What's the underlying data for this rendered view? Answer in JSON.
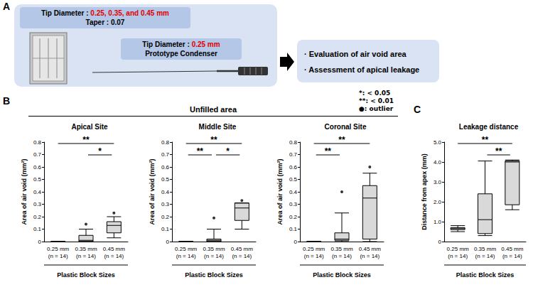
{
  "panel_a": {
    "letter": "A",
    "block": {
      "label": "Tip Diameter :",
      "value": "0.25, 0.35, and 0.45 mm",
      "taper": "Taper : 0.07"
    },
    "condenser": {
      "label": "Tip Diameter :",
      "value": "0.25 mm",
      "name": "Prototype Condenser"
    },
    "outcomes": [
      "· Evaluation of air void area",
      "· Assessment of apical leakage"
    ]
  },
  "panel_b": {
    "letter": "B",
    "heading": "Unfilled area",
    "notes": [
      "*: < 0.05",
      "**: < 0.01",
      "●: outlier"
    ]
  },
  "panel_c": {
    "letter": "C"
  },
  "chart_data": [
    {
      "type": "boxplot",
      "title": "Apical Site",
      "categories": [
        "0.25 mm (n = 14)",
        "0.35 mm (n = 14)",
        "0.45 mm (n = 14)"
      ],
      "values": [
        [
          0,
          0,
          0,
          0,
          0
        ],
        [
          0,
          0,
          0.01,
          0.05,
          0.1
        ],
        [
          0.03,
          0.07,
          0.13,
          0.16,
          0.2
        ]
      ],
      "outliers": [
        [
          1,
          0.14
        ],
        [
          2,
          0.23
        ]
      ],
      "color": "#d9d9d9",
      "ylabel": "Area of air void (mm²)",
      "xlabel": "Plastic Block Sizes",
      "ylim": [
        0,
        0.8
      ],
      "yticks": [
        0,
        0.1,
        0.2,
        0.3,
        0.4,
        0.5,
        0.6,
        0.7,
        0.8
      ],
      "significance": [
        {
          "from": 0,
          "to": 2,
          "label": "**"
        },
        {
          "from": 1,
          "to": 2,
          "label": "*"
        }
      ]
    },
    {
      "type": "boxplot",
      "title": "Middle Site",
      "categories": [
        "0.25 mm (n = 14)",
        "0.35 mm (n = 14)",
        "0.45 mm (n = 14)"
      ],
      "values": [
        [
          0,
          0,
          0,
          0,
          0
        ],
        [
          0,
          0,
          0.01,
          0.02,
          0.1
        ],
        [
          0.1,
          0.17,
          0.27,
          0.31,
          0.31
        ]
      ],
      "outliers": [
        [
          1,
          0.19
        ],
        [
          2,
          0.33
        ]
      ],
      "color": "#d9d9d9",
      "ylabel": "Area of air void (mm²)",
      "xlabel": "Plastic Block Sizes",
      "ylim": [
        0,
        0.8
      ],
      "yticks": [
        0,
        0.1,
        0.2,
        0.3,
        0.4,
        0.5,
        0.6,
        0.7,
        0.8
      ],
      "significance": [
        {
          "from": 0,
          "to": 2,
          "label": "**"
        },
        {
          "from": 0,
          "to": 1,
          "label": "**"
        },
        {
          "from": 1,
          "to": 2,
          "label": "*"
        }
      ]
    },
    {
      "type": "boxplot",
      "title": "Coronal Site",
      "categories": [
        "0.25 mm (n = 14)",
        "0.35 mm (n = 14)",
        "0.45 mm (n = 14)"
      ],
      "values": [
        [
          0,
          0,
          0,
          0,
          0
        ],
        [
          0,
          0.01,
          0.02,
          0.07,
          0.23
        ],
        [
          0,
          0.02,
          0.35,
          0.45,
          0.55
        ]
      ],
      "outliers": [
        [
          1,
          0.4
        ],
        [
          2,
          0.6
        ]
      ],
      "color": "#d9d9d9",
      "ylabel": "Area of air void (mm²)",
      "xlabel": "Plastic Block Sizes",
      "ylim": [
        0,
        0.8
      ],
      "yticks": [
        0,
        0.1,
        0.2,
        0.3,
        0.4,
        0.5,
        0.6,
        0.7,
        0.8
      ],
      "significance": [
        {
          "from": 0,
          "to": 2,
          "label": "**"
        },
        {
          "from": 0,
          "to": 1,
          "label": "**"
        }
      ]
    },
    {
      "type": "boxplot",
      "title": "Leakage distance",
      "categories": [
        "0.25 mm (n = 14)",
        "0.35 mm (n = 14)",
        "0.45 mm (n = 14)"
      ],
      "values": [
        [
          0.5,
          0.6,
          0.65,
          0.7,
          0.8
        ],
        [
          0.3,
          0.4,
          1.1,
          2.4,
          4.05
        ],
        [
          1.6,
          1.85,
          4.0,
          4.05,
          4.1
        ]
      ],
      "outliers": [],
      "color": "#d9d9d9",
      "ylabel": "Distance from apex (mm)",
      "xlabel": "Plastic Block Sizes",
      "ylim": [
        0,
        5
      ],
      "yticks": [
        0,
        {
          "value": 1,
          "label": "1.0"
        },
        {
          "value": 2,
          "label": "2.0"
        },
        {
          "value": 3,
          "label": "3.0"
        },
        {
          "value": 4,
          "label": "4.0"
        },
        {
          "value": 5,
          "label": "5.0"
        }
      ],
      "significance": [
        {
          "from": 0,
          "to": 2,
          "label": "**"
        },
        {
          "from": 1,
          "to": 2,
          "label": "**"
        }
      ]
    }
  ]
}
